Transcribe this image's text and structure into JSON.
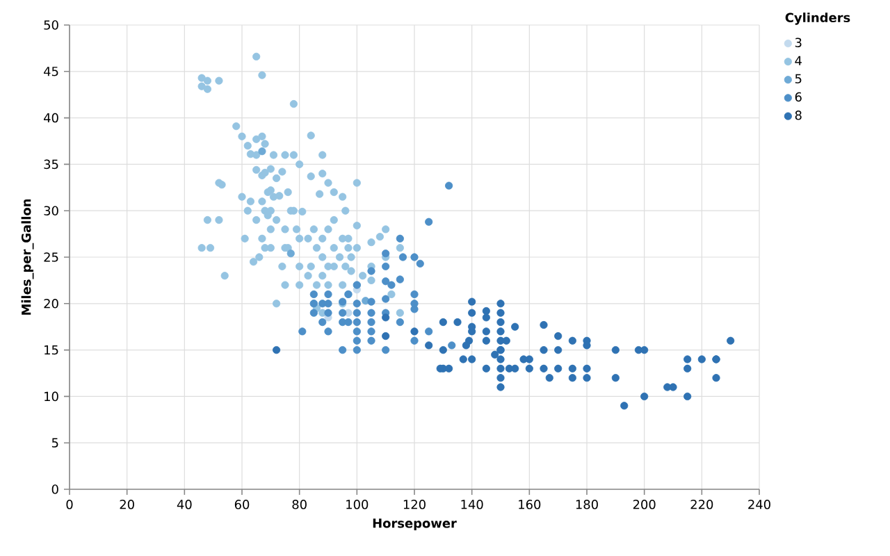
{
  "chart_data": {
    "type": "scatter",
    "xlabel": "Horsepower",
    "ylabel": "Miles_per_Gallon",
    "legend_title": "Cylinders",
    "xlim": [
      0,
      240
    ],
    "xticks": [
      0,
      20,
      40,
      60,
      80,
      100,
      120,
      140,
      160,
      180,
      200,
      220,
      240
    ],
    "ylim": [
      0,
      50
    ],
    "yticks": [
      0,
      5,
      10,
      15,
      20,
      25,
      30,
      35,
      40,
      45,
      50
    ],
    "grid": true,
    "legend": "right",
    "marker": "circle",
    "series": [
      {
        "name": "3",
        "color": "#c3daee",
        "x": [
          90,
          97,
          100
        ],
        "values": [
          18.5,
          19,
          21.5
        ]
      },
      {
        "name": "4",
        "color": "#95c4e2",
        "x": [
          46,
          46,
          48,
          48,
          52,
          65,
          67,
          78,
          48,
          52,
          53,
          52,
          49,
          46,
          54,
          60,
          58,
          62,
          65,
          65,
          67,
          68,
          63,
          65,
          67,
          68,
          70,
          70,
          71,
          72,
          74,
          75,
          76,
          78,
          80,
          84,
          84,
          88,
          88,
          90,
          92,
          95,
          97,
          100,
          60,
          62,
          63,
          65,
          67,
          68,
          69,
          70,
          72,
          75,
          75,
          76,
          78,
          79,
          80,
          83,
          85,
          86,
          88,
          88,
          90,
          92,
          95,
          96,
          97,
          98,
          88,
          86,
          84,
          80,
          75,
          72,
          70,
          68,
          67,
          66,
          100,
          110,
          105,
          112,
          115,
          110,
          90,
          95,
          100,
          83,
          85,
          88,
          92,
          94,
          98,
          102,
          105,
          115,
          95,
          97,
          86,
          80,
          74,
          70,
          71,
          64,
          61,
          69,
          73,
          77,
          81,
          87,
          92,
          100,
          96,
          105,
          108,
          90
        ],
        "values": [
          44.3,
          43.4,
          44,
          43.1,
          44,
          46.6,
          44.6,
          41.5,
          29,
          29,
          32.8,
          33,
          26,
          26,
          23,
          38,
          39.1,
          37,
          37.7,
          36,
          38,
          37.2,
          36.1,
          34.4,
          33.8,
          34.1,
          34.5,
          32.2,
          31.5,
          33.5,
          34.2,
          36,
          32,
          36,
          35,
          38.1,
          33.7,
          36,
          34,
          33,
          32,
          31.5,
          27,
          33,
          31.5,
          30,
          31,
          29,
          31,
          30,
          32,
          28,
          29,
          28,
          26,
          26,
          30,
          28,
          27,
          27,
          28,
          26,
          27,
          25,
          28,
          26,
          27,
          24,
          26,
          23.5,
          23,
          22,
          24,
          24,
          22,
          20,
          26,
          26,
          27,
          25,
          26,
          25,
          24,
          21,
          26,
          28,
          22,
          22,
          22,
          23,
          20,
          19,
          24,
          25,
          25,
          23,
          22.5,
          19,
          20,
          21,
          19.5,
          22,
          24,
          30,
          36,
          24.5,
          27,
          29.5,
          31.6,
          30,
          29.9,
          31.8,
          29,
          28.4,
          30,
          26.6,
          27.2,
          24
        ]
      },
      {
        "name": "5",
        "color": "#6eaad6",
        "x": [
          67,
          77,
          103
        ],
        "values": [
          36.4,
          25.4,
          20.3
        ]
      },
      {
        "name": "6",
        "color": "#4d8fc8",
        "x": [
          100,
          105,
          95,
          97,
          85,
          88,
          100,
          90,
          100,
          105,
          95,
          100,
          110,
          88,
          85,
          100,
          105,
          110,
          90,
          95,
          110,
          115,
          120,
          125,
          100,
          85,
          90,
          105,
          110,
          115,
          120,
          105,
          112,
          110,
          120,
          122,
          110,
          125,
          115,
          90,
          81,
          100,
          120,
          132,
          116,
          97,
          95,
          105,
          120,
          133
        ],
        "values": [
          18,
          18,
          18,
          21,
          21,
          20,
          19,
          17,
          16,
          16,
          15,
          15,
          15,
          18,
          19,
          17,
          17,
          20.5,
          21,
          19,
          19,
          18,
          19.4,
          17,
          20,
          20,
          19,
          20.2,
          22.4,
          22.6,
          20,
          23.5,
          22,
          24,
          21,
          24.3,
          25.4,
          28.8,
          27,
          20,
          17,
          22,
          25,
          32.7,
          25,
          18,
          20.2,
          19,
          16,
          15.5
        ]
      },
      {
        "name": "8",
        "color": "#2f72b3",
        "x": [
          130,
          165,
          150,
          150,
          140,
          198,
          220,
          215,
          225,
          190,
          170,
          160,
          150,
          225,
          215,
          200,
          210,
          193,
          165,
          175,
          153,
          150,
          180,
          170,
          175,
          150,
          145,
          137,
          150,
          140,
          150,
          158,
          130,
          167,
          180,
          208,
          155,
          160,
          190,
          150,
          230,
          225,
          215,
          175,
          150,
          145,
          170,
          180,
          145,
          155,
          139,
          140,
          150,
          140,
          140,
          145,
          110,
          120,
          125,
          130,
          129,
          132,
          150,
          145,
          135,
          138,
          148,
          152,
          165,
          180,
          200,
          110,
          72
        ],
        "values": [
          18,
          15,
          18,
          16,
          17,
          15,
          14,
          14,
          14,
          15,
          15,
          14,
          15,
          14,
          10,
          10,
          11,
          9,
          13,
          13,
          13,
          13,
          12,
          13,
          12,
          11,
          13,
          14,
          15,
          14,
          14,
          14,
          13,
          12,
          13,
          11,
          13,
          13,
          12,
          12,
          16,
          12,
          13,
          16,
          17,
          16,
          16.5,
          16,
          18.5,
          17.5,
          16,
          19,
          19,
          20.2,
          17.5,
          17,
          16.5,
          17,
          15.5,
          15,
          13,
          13,
          20,
          19.2,
          18,
          15.5,
          14.5,
          16,
          17.7,
          15.5,
          15,
          18.5,
          15
        ]
      }
    ]
  }
}
